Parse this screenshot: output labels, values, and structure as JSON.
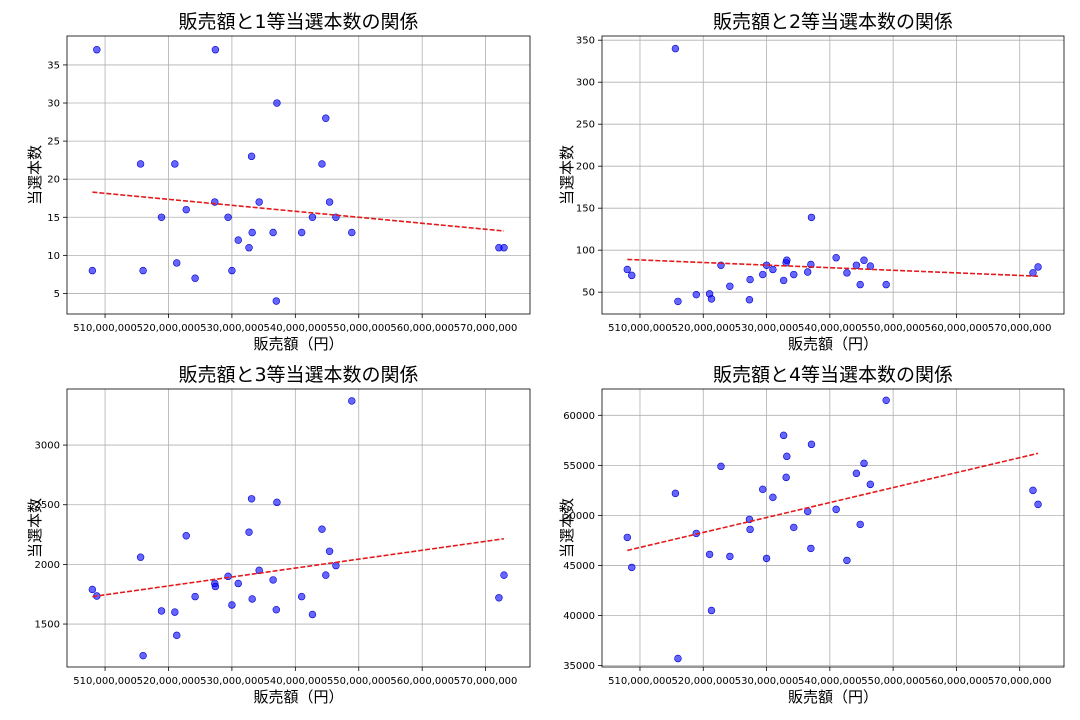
{
  "chart_data": [
    {
      "type": "scatter",
      "title": "販売額と1等当選本数の関係",
      "xlabel": "販売額（円）",
      "ylabel": "当選本数",
      "xlim": [
        504000000,
        577000000
      ],
      "ylim": [
        2.3,
        38.8
      ],
      "xticks": [
        510000000,
        520000000,
        530000000,
        540000000,
        550000000,
        560000000,
        570000000
      ],
      "yticks": [
        5,
        10,
        15,
        20,
        25,
        30,
        35
      ],
      "grid": true,
      "points": [
        {
          "x": 508000000,
          "y": 8
        },
        {
          "x": 508700000,
          "y": 37
        },
        {
          "x": 515600000,
          "y": 22
        },
        {
          "x": 516000000,
          "y": 8
        },
        {
          "x": 518900000,
          "y": 15
        },
        {
          "x": 521000000,
          "y": 22
        },
        {
          "x": 521300000,
          "y": 9
        },
        {
          "x": 522800000,
          "y": 16
        },
        {
          "x": 524200000,
          "y": 7
        },
        {
          "x": 527300000,
          "y": 17
        },
        {
          "x": 527400000,
          "y": 37
        },
        {
          "x": 529400000,
          "y": 15
        },
        {
          "x": 530000000,
          "y": 8
        },
        {
          "x": 531000000,
          "y": 12
        },
        {
          "x": 532700000,
          "y": 11
        },
        {
          "x": 533100000,
          "y": 23
        },
        {
          "x": 533200000,
          "y": 13
        },
        {
          "x": 534300000,
          "y": 17
        },
        {
          "x": 536500000,
          "y": 13
        },
        {
          "x": 537100000,
          "y": 30
        },
        {
          "x": 537000000,
          "y": 4
        },
        {
          "x": 541000000,
          "y": 13
        },
        {
          "x": 542700000,
          "y": 15
        },
        {
          "x": 544200000,
          "y": 22
        },
        {
          "x": 544800000,
          "y": 28
        },
        {
          "x": 545400000,
          "y": 17
        },
        {
          "x": 546400000,
          "y": 15
        },
        {
          "x": 548900000,
          "y": 13
        },
        {
          "x": 572100000,
          "y": 11
        },
        {
          "x": 572900000,
          "y": 11
        }
      ],
      "trend": {
        "x": [
          508000000,
          572900000
        ],
        "y": [
          18.3,
          13.2
        ]
      }
    },
    {
      "type": "scatter",
      "title": "販売額と2等当選本数の関係",
      "xlabel": "販売額（円）",
      "ylabel": "当選本数",
      "xlim": [
        504000000,
        577000000
      ],
      "ylim": [
        24,
        355
      ],
      "xticks": [
        510000000,
        520000000,
        530000000,
        540000000,
        550000000,
        560000000,
        570000000
      ],
      "yticks": [
        50,
        100,
        150,
        200,
        250,
        300,
        350
      ],
      "grid": true,
      "points": [
        {
          "x": 508000000,
          "y": 77
        },
        {
          "x": 508700000,
          "y": 70
        },
        {
          "x": 515600000,
          "y": 340
        },
        {
          "x": 516000000,
          "y": 39
        },
        {
          "x": 518900000,
          "y": 47
        },
        {
          "x": 521000000,
          "y": 48
        },
        {
          "x": 521300000,
          "y": 42
        },
        {
          "x": 522800000,
          "y": 82
        },
        {
          "x": 524200000,
          "y": 57
        },
        {
          "x": 527300000,
          "y": 41
        },
        {
          "x": 527400000,
          "y": 65
        },
        {
          "x": 529400000,
          "y": 71
        },
        {
          "x": 530000000,
          "y": 82
        },
        {
          "x": 531000000,
          "y": 77
        },
        {
          "x": 532700000,
          "y": 64
        },
        {
          "x": 533100000,
          "y": 85
        },
        {
          "x": 533200000,
          "y": 88
        },
        {
          "x": 534300000,
          "y": 71
        },
        {
          "x": 536500000,
          "y": 74
        },
        {
          "x": 537100000,
          "y": 139
        },
        {
          "x": 537000000,
          "y": 83
        },
        {
          "x": 541000000,
          "y": 91
        },
        {
          "x": 542700000,
          "y": 73
        },
        {
          "x": 544200000,
          "y": 82
        },
        {
          "x": 544800000,
          "y": 59
        },
        {
          "x": 545400000,
          "y": 88
        },
        {
          "x": 546400000,
          "y": 81
        },
        {
          "x": 548900000,
          "y": 59
        },
        {
          "x": 572100000,
          "y": 73
        },
        {
          "x": 572900000,
          "y": 80
        }
      ],
      "trend": {
        "x": [
          508000000,
          572900000
        ],
        "y": [
          89,
          69
        ]
      }
    },
    {
      "type": "scatter",
      "title": "販売額と3等当選本数の関係",
      "xlabel": "販売額（円）",
      "ylabel": "当選本数",
      "xlim": [
        504000000,
        577000000
      ],
      "ylim": [
        1140,
        3470
      ],
      "xticks": [
        510000000,
        520000000,
        530000000,
        540000000,
        550000000,
        560000000,
        570000000
      ],
      "yticks": [
        1500,
        2000,
        2500,
        3000
      ],
      "grid": true,
      "points": [
        {
          "x": 508000000,
          "y": 1790
        },
        {
          "x": 508700000,
          "y": 1735
        },
        {
          "x": 515600000,
          "y": 2060
        },
        {
          "x": 516000000,
          "y": 1235
        },
        {
          "x": 518900000,
          "y": 1610
        },
        {
          "x": 521000000,
          "y": 1600
        },
        {
          "x": 521300000,
          "y": 1405
        },
        {
          "x": 522800000,
          "y": 2240
        },
        {
          "x": 524200000,
          "y": 1730
        },
        {
          "x": 527300000,
          "y": 1840
        },
        {
          "x": 527400000,
          "y": 1815
        },
        {
          "x": 529400000,
          "y": 1900
        },
        {
          "x": 530000000,
          "y": 1660
        },
        {
          "x": 531000000,
          "y": 1840
        },
        {
          "x": 532700000,
          "y": 2270
        },
        {
          "x": 533100000,
          "y": 2550
        },
        {
          "x": 533200000,
          "y": 1710
        },
        {
          "x": 534300000,
          "y": 1950
        },
        {
          "x": 536500000,
          "y": 1870
        },
        {
          "x": 537100000,
          "y": 2520
        },
        {
          "x": 537000000,
          "y": 1620
        },
        {
          "x": 541000000,
          "y": 1730
        },
        {
          "x": 542700000,
          "y": 1580
        },
        {
          "x": 544200000,
          "y": 2295
        },
        {
          "x": 544800000,
          "y": 1910
        },
        {
          "x": 545400000,
          "y": 2110
        },
        {
          "x": 546400000,
          "y": 1990
        },
        {
          "x": 548900000,
          "y": 3370
        },
        {
          "x": 572100000,
          "y": 1720
        },
        {
          "x": 572900000,
          "y": 1910
        }
      ],
      "trend": {
        "x": [
          508000000,
          572900000
        ],
        "y": [
          1730,
          2215
        ]
      }
    },
    {
      "type": "scatter",
      "title": "販売額と4等当選本数の関係",
      "xlabel": "販売額（円）",
      "ylabel": "当選本数",
      "xlim": [
        504000000,
        577000000
      ],
      "ylim": [
        34850,
        62630
      ],
      "xticks": [
        510000000,
        520000000,
        530000000,
        540000000,
        550000000,
        560000000,
        570000000
      ],
      "yticks": [
        35000,
        40000,
        45000,
        50000,
        55000,
        60000
      ],
      "grid": true,
      "points": [
        {
          "x": 508000000,
          "y": 47800
        },
        {
          "x": 508700000,
          "y": 44800
        },
        {
          "x": 515600000,
          "y": 52200
        },
        {
          "x": 516000000,
          "y": 35700
        },
        {
          "x": 518900000,
          "y": 48200
        },
        {
          "x": 521000000,
          "y": 46100
        },
        {
          "x": 521300000,
          "y": 40500
        },
        {
          "x": 522800000,
          "y": 54900
        },
        {
          "x": 524200000,
          "y": 45900
        },
        {
          "x": 527300000,
          "y": 49600
        },
        {
          "x": 527400000,
          "y": 48600
        },
        {
          "x": 529400000,
          "y": 52600
        },
        {
          "x": 530000000,
          "y": 45700
        },
        {
          "x": 531000000,
          "y": 51800
        },
        {
          "x": 532700000,
          "y": 58000
        },
        {
          "x": 533100000,
          "y": 53800
        },
        {
          "x": 533200000,
          "y": 55900
        },
        {
          "x": 534300000,
          "y": 48800
        },
        {
          "x": 536500000,
          "y": 50400
        },
        {
          "x": 537100000,
          "y": 57100
        },
        {
          "x": 537000000,
          "y": 46700
        },
        {
          "x": 541000000,
          "y": 50600
        },
        {
          "x": 542700000,
          "y": 45500
        },
        {
          "x": 544200000,
          "y": 54200
        },
        {
          "x": 544800000,
          "y": 49100
        },
        {
          "x": 545400000,
          "y": 55200
        },
        {
          "x": 546400000,
          "y": 53100
        },
        {
          "x": 548900000,
          "y": 61500
        },
        {
          "x": 572100000,
          "y": 52500
        },
        {
          "x": 572900000,
          "y": 51100
        }
      ],
      "trend": {
        "x": [
          508000000,
          572900000
        ],
        "y": [
          46500,
          56200
        ]
      }
    }
  ]
}
